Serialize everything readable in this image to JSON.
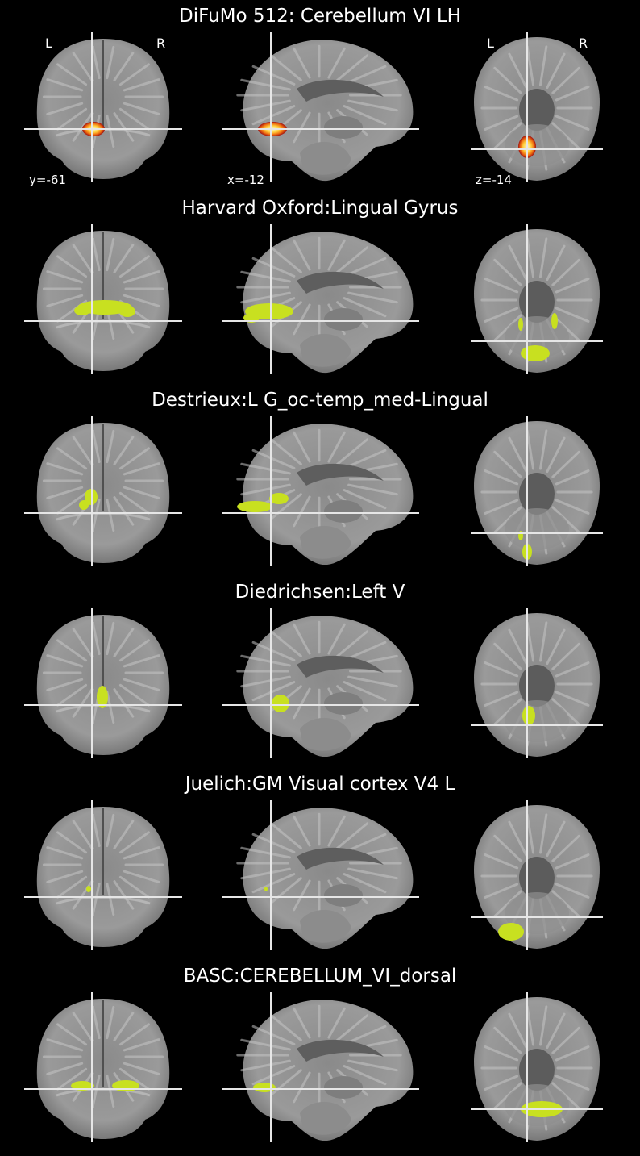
{
  "rows": [
    {
      "title": "DiFuMo 512: Cerebellum VI LH",
      "overlay": "heat"
    },
    {
      "title": "Harvard Oxford:Lingual Gyrus",
      "overlay": "lime"
    },
    {
      "title": "Destrieux:L G_oc-temp_med-Lingual",
      "overlay": "lime"
    },
    {
      "title": "Diedrichsen:Left V",
      "overlay": "lime"
    },
    {
      "title": "Juelich:GM Visual cortex V4 L",
      "overlay": "lime"
    },
    {
      "title": "BASC:CEREBELLUM_VI_dorsal",
      "overlay": "lime"
    }
  ],
  "orientation": {
    "left": "L",
    "right": "R"
  },
  "coords": {
    "coronal": "y=-61",
    "sagittal": "x=-12",
    "axial": "z=-14"
  },
  "colors": {
    "background": "#000000",
    "crosshair": "#e6e6e6",
    "overlay_lime": "#c8e020",
    "heat_outer": "#a01010",
    "heat_mid": "#f07010",
    "heat_core": "#fff6c0",
    "brain_white": "#b0b0b0",
    "brain_gray": "#6a6a6a"
  },
  "icons": {
    "views": [
      "coronal-slice",
      "sagittal-slice",
      "axial-slice"
    ]
  }
}
